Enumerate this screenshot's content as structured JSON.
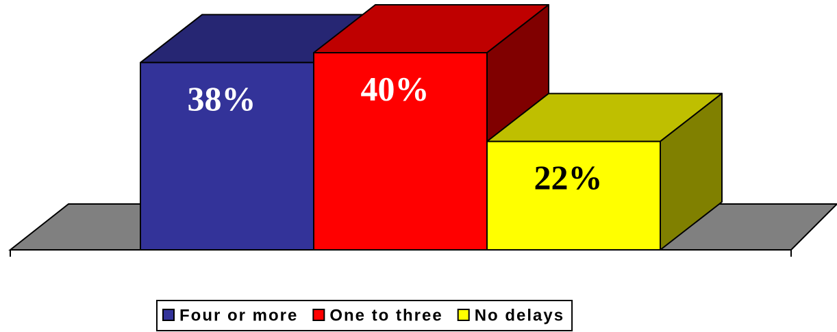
{
  "chart_data": {
    "type": "bar3d",
    "series": [
      {
        "name": "Four or more",
        "color": "#333399",
        "values": [
          38
        ],
        "value_labels": [
          "38%"
        ],
        "label_color": "#ffffff"
      },
      {
        "name": "One to three",
        "color": "#ff0000",
        "values": [
          40
        ],
        "value_labels": [
          "40%"
        ],
        "label_color": "#ffffff"
      },
      {
        "name": "No delays",
        "color": "#ffff00",
        "values": [
          22
        ],
        "value_labels": [
          "22%"
        ],
        "label_color": "#000000"
      }
    ],
    "floor_color": "#808080",
    "legend": "bottom"
  }
}
